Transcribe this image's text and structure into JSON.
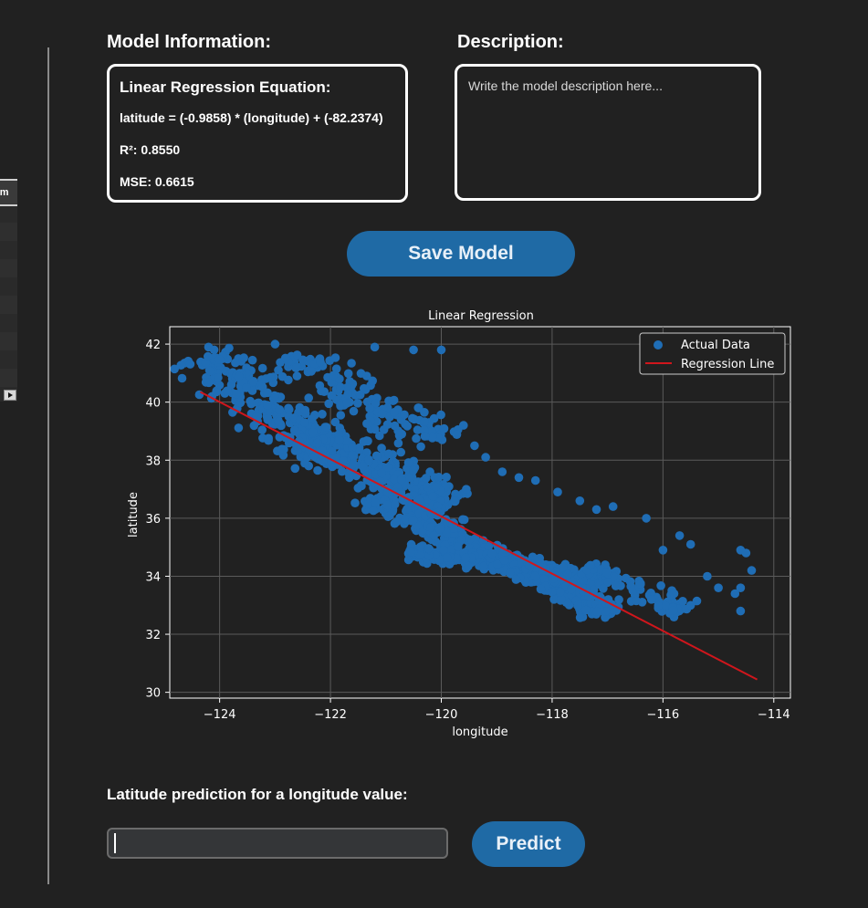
{
  "left_table": {
    "header": "om"
  },
  "model_info": {
    "title": "Model Information:",
    "equation_title": "Linear Regression Equation:",
    "equation": "latitude = (-0.9858) * (longitude) + (-82.2374)",
    "r2": "R²: 0.8550",
    "mse": "MSE: 0.6615"
  },
  "description": {
    "title": "Description:",
    "placeholder": "Write the model description here...",
    "value": ""
  },
  "save_button": "Save Model",
  "prediction": {
    "label": "Latitude prediction for a longitude value:",
    "input_value": "",
    "button": "Predict"
  },
  "colors": {
    "scatter": "#1f6db5",
    "line": "#d0161c",
    "accent": "#1f6aa5"
  },
  "chart_data": {
    "type": "scatter",
    "title": "Linear Regression",
    "xlabel": "longitude",
    "ylabel": "latitude",
    "xlim": [
      -124.9,
      -113.7
    ],
    "ylim": [
      29.8,
      42.6
    ],
    "xticks": [
      -124,
      -122,
      -120,
      -118,
      -116,
      -114
    ],
    "yticks": [
      30,
      32,
      34,
      36,
      38,
      40,
      42
    ],
    "grid": true,
    "legend": "top-right",
    "series": [
      {
        "name": "Actual Data",
        "kind": "scatter",
        "clusters": [
          {
            "x0": -124.3,
            "y0": 41.6,
            "x1": -121.8,
            "y1": 37.8,
            "spread": 0.6,
            "count": 260
          },
          {
            "x0": -122.8,
            "y0": 41.7,
            "x1": -120.0,
            "y1": 38.6,
            "spread": 0.5,
            "count": 160
          },
          {
            "x0": -122.5,
            "y0": 38.8,
            "x1": -119.8,
            "y1": 36.4,
            "spread": 0.55,
            "count": 320
          },
          {
            "x0": -121.3,
            "y0": 36.8,
            "x1": -118.8,
            "y1": 34.4,
            "spread": 0.4,
            "count": 220
          },
          {
            "x0": -120.6,
            "y0": 34.9,
            "x1": -117.0,
            "y1": 33.9,
            "spread": 0.3,
            "count": 260
          },
          {
            "x0": -118.6,
            "y0": 34.3,
            "x1": -116.9,
            "y1": 32.7,
            "spread": 0.35,
            "count": 200
          },
          {
            "x0": -117.4,
            "y0": 34.3,
            "x1": -115.6,
            "y1": 32.8,
            "spread": 0.3,
            "count": 90
          }
        ],
        "points": [
          [
            -124.2,
            41.9
          ],
          [
            -124.1,
            41.8
          ],
          [
            -123.0,
            42.0
          ],
          [
            -121.2,
            41.9
          ],
          [
            -120.5,
            41.8
          ],
          [
            -120.0,
            41.8
          ],
          [
            -119.6,
            39.2
          ],
          [
            -119.4,
            38.5
          ],
          [
            -119.2,
            38.1
          ],
          [
            -118.9,
            37.6
          ],
          [
            -118.6,
            37.4
          ],
          [
            -118.3,
            37.3
          ],
          [
            -117.9,
            36.9
          ],
          [
            -117.5,
            36.6
          ],
          [
            -117.2,
            36.3
          ],
          [
            -116.9,
            36.4
          ],
          [
            -116.3,
            36.0
          ],
          [
            -115.7,
            35.4
          ],
          [
            -115.5,
            35.1
          ],
          [
            -116.0,
            34.9
          ],
          [
            -115.2,
            34.0
          ],
          [
            -115.0,
            33.6
          ],
          [
            -114.6,
            34.9
          ],
          [
            -114.5,
            34.8
          ],
          [
            -114.4,
            34.2
          ],
          [
            -114.6,
            33.6
          ],
          [
            -114.6,
            32.8
          ],
          [
            -114.7,
            33.4
          ],
          [
            -115.5,
            33.0
          ],
          [
            -115.8,
            33.4
          ]
        ]
      },
      {
        "name": "Regression Line",
        "kind": "line",
        "x": [
          -124.35,
          -114.3
        ],
        "y": [
          40.35,
          30.44
        ]
      }
    ]
  }
}
